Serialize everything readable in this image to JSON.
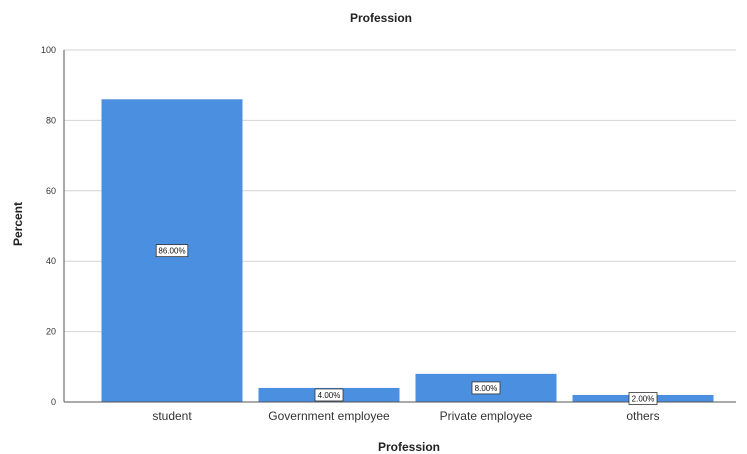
{
  "chart_data": {
    "type": "bar",
    "title": "Profession",
    "xlabel": "Profession",
    "ylabel": "Percent",
    "categories": [
      "student",
      "Government employee",
      "Private employee",
      "others"
    ],
    "values": [
      86,
      4,
      8,
      2
    ],
    "data_labels": [
      "86.00%",
      "4.00%",
      "8.00%",
      "2.00%"
    ],
    "ylim": [
      0,
      100
    ],
    "yticks": [
      0,
      20,
      40,
      60,
      80,
      100
    ],
    "grid": true,
    "bar_color": "#4a8fe0"
  }
}
